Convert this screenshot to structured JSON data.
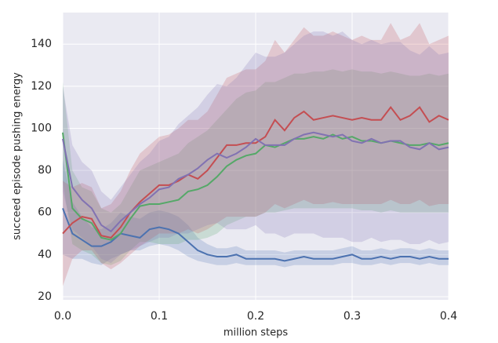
{
  "chart_data": {
    "type": "line",
    "xlabel": "million steps",
    "ylabel": "succeed episode pushing energy",
    "x": [
      0,
      0.01,
      0.02,
      0.03,
      0.04,
      0.05,
      0.06,
      0.07,
      0.08,
      0.09,
      0.1,
      0.11,
      0.12,
      0.13,
      0.14,
      0.15,
      0.16,
      0.17,
      0.18,
      0.19,
      0.2,
      0.21,
      0.22,
      0.23,
      0.24,
      0.25,
      0.26,
      0.27,
      0.28,
      0.29,
      0.3,
      0.31,
      0.32,
      0.33,
      0.34,
      0.35,
      0.36,
      0.37,
      0.38,
      0.39,
      0.4
    ],
    "series": [
      {
        "color": "#4c72b0",
        "values": [
          62,
          50,
          47,
          44,
          44,
          46,
          50,
          49,
          48,
          52,
          53,
          52,
          50,
          46,
          42,
          40,
          39,
          39,
          40,
          38,
          38,
          38,
          38,
          37,
          38,
          39,
          38,
          38,
          38,
          39,
          40,
          38,
          38,
          39,
          38,
          39,
          39,
          38,
          39,
          38,
          38
        ],
        "lower": [
          40,
          38,
          38,
          36,
          35,
          38,
          40,
          42,
          42,
          44,
          45,
          44,
          42,
          39,
          37,
          36,
          35,
          35,
          36,
          35,
          35,
          35,
          35,
          34,
          35,
          35,
          35,
          35,
          35,
          36,
          36,
          35,
          35,
          36,
          35,
          36,
          36,
          35,
          36,
          35,
          35
        ],
        "upper": [
          85,
          65,
          58,
          53,
          52,
          55,
          60,
          58,
          57,
          60,
          61,
          60,
          58,
          54,
          48,
          45,
          43,
          43,
          44,
          42,
          42,
          42,
          42,
          41,
          42,
          42,
          42,
          42,
          42,
          43,
          44,
          42,
          42,
          43,
          42,
          43,
          43,
          42,
          43,
          42,
          42
        ]
      },
      {
        "color": "#55a868",
        "values": [
          98,
          62,
          57,
          55,
          48,
          47,
          50,
          57,
          63,
          64,
          64,
          65,
          66,
          70,
          71,
          73,
          77,
          82,
          85,
          87,
          88,
          92,
          91,
          93,
          95,
          95,
          96,
          95,
          97,
          95,
          96,
          94,
          94,
          93,
          94,
          93,
          92,
          92,
          93,
          92,
          93
        ],
        "lower": [
          75,
          45,
          42,
          40,
          36,
          35,
          37,
          42,
          46,
          46,
          45,
          45,
          45,
          47,
          47,
          48,
          50,
          54,
          56,
          58,
          58,
          60,
          60,
          61,
          62,
          62,
          62,
          62,
          62,
          62,
          62,
          61,
          61,
          60,
          61,
          60,
          60,
          60,
          60,
          60,
          60
        ],
        "upper": [
          122,
          80,
          72,
          70,
          62,
          60,
          64,
          72,
          80,
          82,
          84,
          86,
          88,
          93,
          96,
          99,
          104,
          109,
          114,
          117,
          118,
          122,
          122,
          124,
          126,
          126,
          127,
          127,
          128,
          127,
          128,
          127,
          127,
          126,
          127,
          126,
          125,
          125,
          126,
          125,
          126
        ]
      },
      {
        "color": "#c44e52",
        "values": [
          50,
          55,
          58,
          57,
          49,
          48,
          53,
          60,
          65,
          69,
          73,
          73,
          75,
          78,
          76,
          80,
          86,
          92,
          92,
          93,
          93,
          96,
          104,
          99,
          105,
          108,
          104,
          105,
          106,
          105,
          104,
          105,
          104,
          104,
          110,
          104,
          106,
          110,
          103,
          106,
          104
        ],
        "lower": [
          25,
          38,
          42,
          42,
          36,
          33,
          36,
          40,
          44,
          47,
          50,
          50,
          50,
          52,
          50,
          52,
          55,
          58,
          58,
          58,
          58,
          60,
          64,
          62,
          64,
          66,
          64,
          64,
          65,
          64,
          64,
          64,
          64,
          64,
          66,
          64,
          64,
          66,
          63,
          64,
          64
        ],
        "upper": [
          75,
          72,
          74,
          72,
          62,
          64,
          70,
          80,
          88,
          92,
          96,
          97,
          100,
          104,
          104,
          108,
          116,
          124,
          126,
          128,
          128,
          132,
          142,
          136,
          142,
          148,
          144,
          144,
          146,
          144,
          142,
          144,
          142,
          142,
          150,
          142,
          144,
          150,
          140,
          142,
          144
        ]
      },
      {
        "color": "#8172b2",
        "values": [
          95,
          72,
          66,
          62,
          54,
          51,
          56,
          60,
          64,
          67,
          71,
          72,
          76,
          78,
          81,
          85,
          88,
          86,
          88,
          91,
          95,
          92,
          92,
          92,
          95,
          97,
          98,
          97,
          96,
          97,
          94,
          93,
          95,
          93,
          94,
          94,
          91,
          90,
          93,
          90,
          91
        ],
        "lower": [
          70,
          52,
          48,
          44,
          38,
          36,
          40,
          42,
          44,
          46,
          48,
          48,
          50,
          50,
          52,
          54,
          55,
          52,
          52,
          52,
          54,
          50,
          50,
          48,
          50,
          50,
          50,
          48,
          48,
          48,
          46,
          46,
          48,
          46,
          47,
          47,
          45,
          45,
          47,
          45,
          46
        ],
        "upper": [
          120,
          92,
          84,
          80,
          70,
          66,
          72,
          78,
          84,
          88,
          94,
          96,
          102,
          106,
          110,
          116,
          121,
          120,
          124,
          130,
          136,
          134,
          134,
          136,
          140,
          144,
          146,
          146,
          144,
          146,
          142,
          140,
          142,
          140,
          141,
          141,
          137,
          135,
          139,
          135,
          136
        ]
      }
    ],
    "xlim": [
      0,
      0.4
    ],
    "xticks": [
      {
        "value": 0,
        "label": "0.0"
      },
      0.1,
      0.2,
      0.3,
      0.4
    ],
    "ylim": [
      18.5,
      155
    ],
    "yticks": [
      20,
      40,
      60,
      80,
      100,
      120,
      140
    ],
    "grid": true,
    "band_opacity": 0.22
  }
}
